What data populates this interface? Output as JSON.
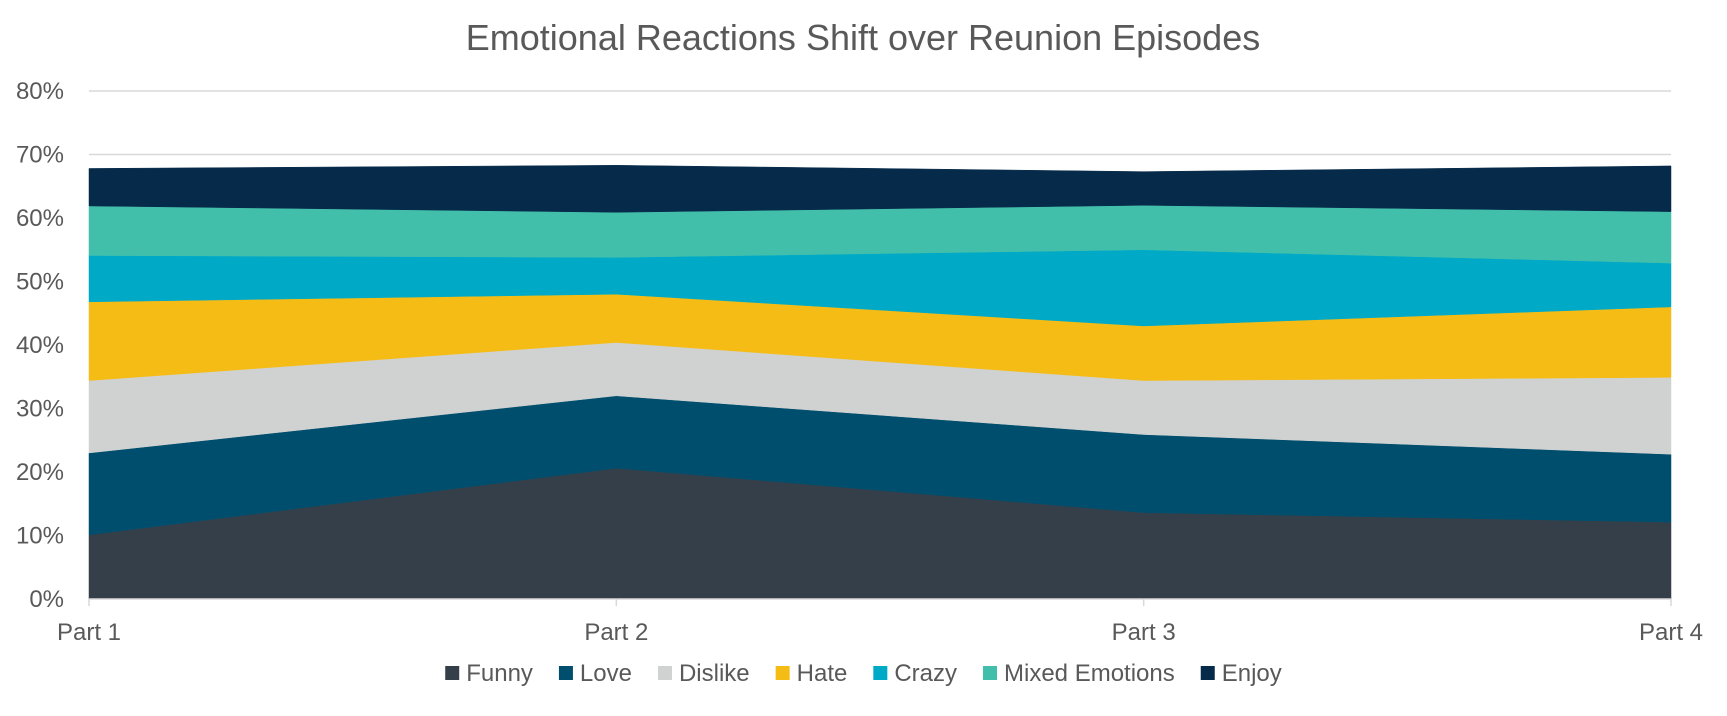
{
  "chart_data": {
    "type": "area",
    "stacked": true,
    "title": "Emotional Reactions Shift over Reunion Episodes",
    "xlabel": "",
    "ylabel": "",
    "categories": [
      "Part 1",
      "Part 2",
      "Part 3",
      "Part 4"
    ],
    "y_ticks": [
      "0%",
      "10%",
      "20%",
      "30%",
      "40%",
      "50%",
      "60%",
      "70%",
      "80%"
    ],
    "ylim": [
      0,
      80
    ],
    "grid": true,
    "legend_position": "bottom",
    "series": [
      {
        "name": "Funny",
        "color": "#353f49",
        "values": [
          10.1,
          20.6,
          13.6,
          12.1
        ]
      },
      {
        "name": "Love",
        "color": "#004e6d",
        "values": [
          12.9,
          11.4,
          12.3,
          10.7
        ]
      },
      {
        "name": "Dislike",
        "color": "#d0d2d1",
        "values": [
          11.4,
          8.4,
          8.5,
          12.1
        ]
      },
      {
        "name": "Hate",
        "color": "#f5bc16",
        "values": [
          12.4,
          7.6,
          8.6,
          11.1
        ]
      },
      {
        "name": "Crazy",
        "color": "#00aac7",
        "values": [
          7.3,
          5.8,
          12.0,
          6.9
        ]
      },
      {
        "name": "Mixed Emotions",
        "color": "#42bfab",
        "values": [
          7.8,
          7.1,
          7.0,
          8.1
        ]
      },
      {
        "name": "Enjoy",
        "color": "#062a49",
        "values": [
          5.9,
          7.4,
          5.3,
          7.2
        ]
      }
    ]
  }
}
